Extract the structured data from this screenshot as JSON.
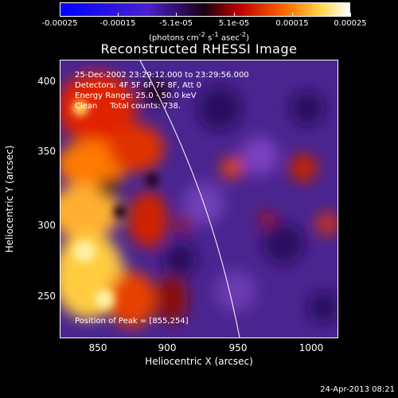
{
  "colorbar": {
    "ticks": [
      "-0.00025",
      "-0.00015",
      "-5.1e-05",
      "5.1e-05",
      "0.00015",
      "0.00025"
    ],
    "units_html": "(photons cm<sup>-2</sup> s<sup>-1</sup> asec<sup>-2</sup>)"
  },
  "title": "Reconstructed RHESSI Image",
  "info": {
    "line1": "25-Dec-2002 23:29:12.000 to 23:29:56.000",
    "line2": "Detectors: 4F 5F 6F 7F 8F, Att 0",
    "line3": "Energy Range: 25.0 - 50.0 keV",
    "line4": "Clean     Total counts: 738.",
    "peak": "Position of Peak = [855,254]"
  },
  "axes": {
    "xlabel": "Heliocentric X (arcsec)",
    "ylabel": "Heliocentric Y (arcsec)",
    "xticks": [
      "850",
      "900",
      "950",
      "1000"
    ],
    "yticks": [
      "400",
      "350",
      "300",
      "250"
    ]
  },
  "footer": {
    "date": "24-Apr-2013 08:21"
  }
}
